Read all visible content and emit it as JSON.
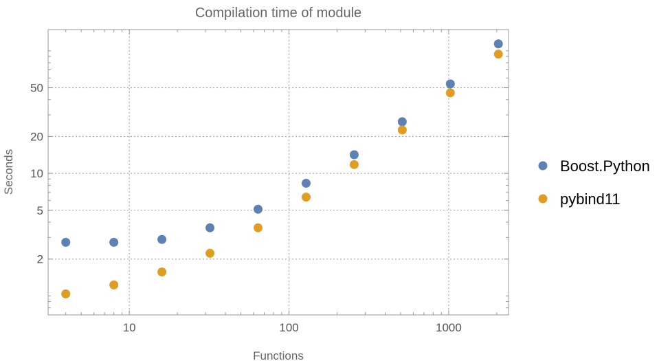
{
  "chart_data": {
    "type": "scatter",
    "title": "Compilation time of module",
    "xlabel": "Functions",
    "ylabel": "Seconds",
    "xscale": "log",
    "yscale": "log",
    "xlim": [
      3.1,
      2370
    ],
    "ylim": [
      0.7,
      149
    ],
    "xticks": [
      10,
      100,
      1000
    ],
    "xtick_labels": [
      "10",
      "100",
      "1000"
    ],
    "yticks": [
      2,
      5,
      10,
      20,
      50
    ],
    "ytick_labels": [
      "2",
      "5",
      "10",
      "20",
      "50"
    ],
    "grid": true,
    "legend": "right",
    "x": [
      4,
      8,
      16,
      32,
      64,
      128,
      256,
      512,
      1024,
      2048
    ],
    "series": [
      {
        "name": "Boost.Python",
        "color": "#5E81B5",
        "values": [
          2.74,
          2.74,
          2.89,
          3.6,
          5.1,
          8.3,
          14.2,
          26.4,
          53.7,
          114
        ]
      },
      {
        "name": "pybind11",
        "color": "#E19C24",
        "values": [
          1.04,
          1.23,
          1.57,
          2.23,
          3.6,
          6.4,
          11.8,
          22.6,
          45.4,
          94
        ]
      }
    ]
  }
}
